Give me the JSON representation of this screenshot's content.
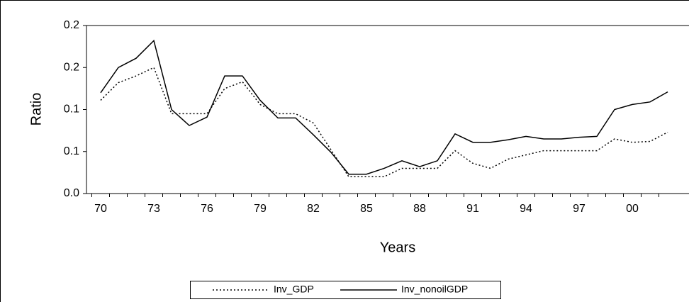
{
  "chart_data": {
    "type": "line",
    "x_label": "Years",
    "y_label": "Ratio",
    "categories": [
      "70",
      null,
      null,
      "73",
      null,
      null,
      "76",
      null,
      null,
      "79",
      null,
      null,
      "82",
      null,
      null,
      "85",
      null,
      null,
      "88",
      null,
      null,
      "91",
      null,
      null,
      "94",
      null,
      null,
      "97",
      null,
      null,
      "00",
      null,
      null
    ],
    "series": [
      {
        "name": "Inv_GDP",
        "color": "#000000",
        "line_style": "dotted",
        "values": [
          0.111,
          0.132,
          0.14,
          0.15,
          0.095,
          0.095,
          0.095,
          0.125,
          0.133,
          0.106,
          0.095,
          0.095,
          0.084,
          0.052,
          0.02,
          0.02,
          0.02,
          0.03,
          0.03,
          0.03,
          0.051,
          0.036,
          0.03,
          0.041,
          0.046,
          0.051,
          0.051,
          0.051,
          0.051,
          0.065,
          0.061,
          0.062,
          0.073
        ]
      },
      {
        "name": "Inv_nonoilGDP",
        "color": "#000000",
        "line_style": "solid",
        "values": [
          0.12,
          0.15,
          0.161,
          0.182,
          0.1,
          0.081,
          0.091,
          0.14,
          0.14,
          0.111,
          0.09,
          0.09,
          0.07,
          0.049,
          0.023,
          0.023,
          0.03,
          0.039,
          0.032,
          0.039,
          0.071,
          0.061,
          0.061,
          0.064,
          0.068,
          0.065,
          0.065,
          0.067,
          0.068,
          0.1,
          0.106,
          0.109,
          0.121
        ]
      }
    ],
    "ylim": [
      0,
      0.2
    ],
    "yticks": [
      {
        "value": 0,
        "label": "0.0"
      },
      {
        "value": 0.05,
        "label": "0.1"
      },
      0.1,
      {
        "value": 0.15,
        "label": "0.2"
      },
      0.2
    ],
    "legend": "bottom"
  }
}
